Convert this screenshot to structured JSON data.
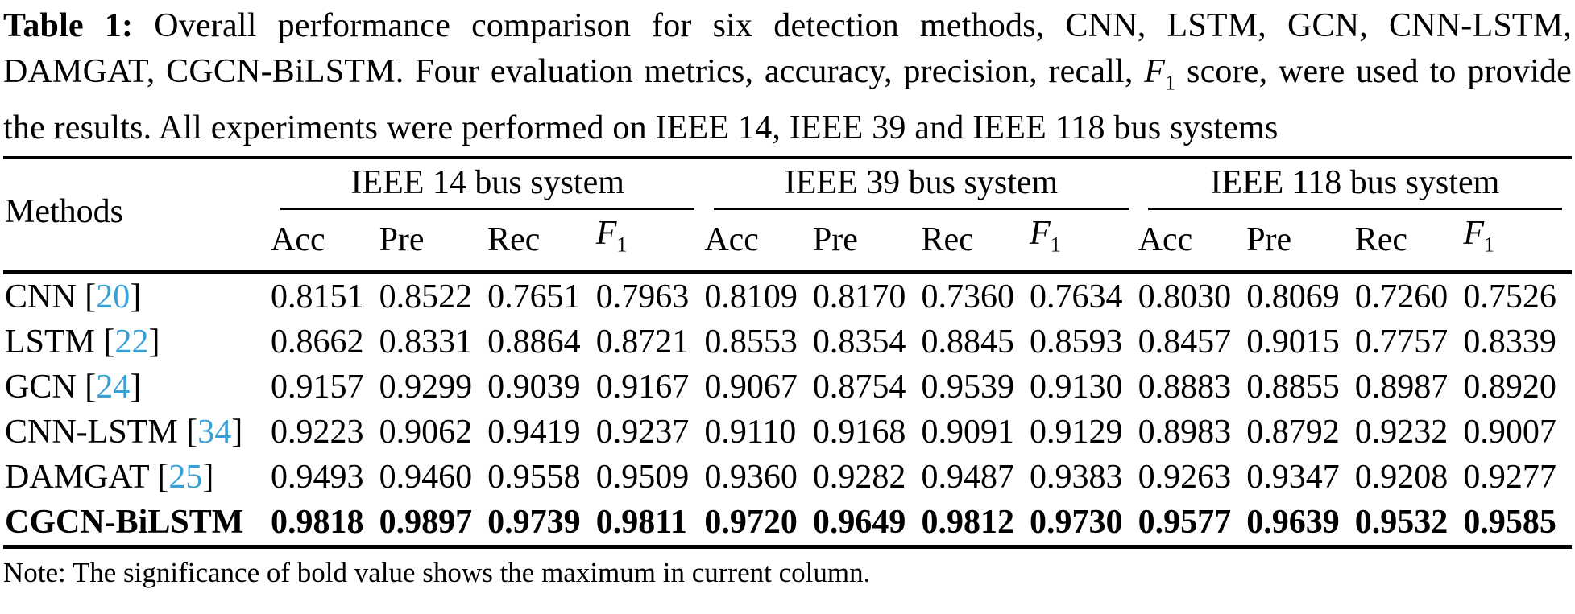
{
  "caption": {
    "label": "Table 1:",
    "segments": [
      {
        "text": "Overall performance comparison for six detection methods, CNN, LSTM, GCN, CNN-LSTM, DAMGAT, CGCN-BiLSTM. Four evaluation metrics, accuracy, precision, recall, "
      },
      {
        "math": "F",
        "sub": "1"
      },
      {
        "text": " score, were used to provide the results. All experiments were performed on IEEE 14, IEEE 39 and IEEE 118 bus systems"
      }
    ]
  },
  "table": {
    "methods_header": "Methods",
    "groups": [
      {
        "label": "IEEE 14 bus system"
      },
      {
        "label": "IEEE 39 bus system"
      },
      {
        "label": "IEEE 118 bus system"
      }
    ],
    "metric_headers": [
      {
        "base": "Acc"
      },
      {
        "base": "Pre"
      },
      {
        "base": "Rec"
      },
      {
        "base": "F",
        "sub": "1"
      }
    ],
    "citation_brackets": [
      "[",
      "]"
    ],
    "rows": [
      {
        "method": "CNN",
        "citation": "20",
        "bold": false,
        "values": [
          "0.8151",
          "0.8522",
          "0.7651",
          "0.7963",
          "0.8109",
          "0.8170",
          "0.7360",
          "0.7634",
          "0.8030",
          "0.8069",
          "0.7260",
          "0.7526"
        ]
      },
      {
        "method": "LSTM",
        "citation": "22",
        "bold": false,
        "values": [
          "0.8662",
          "0.8331",
          "0.8864",
          "0.8721",
          "0.8553",
          "0.8354",
          "0.8845",
          "0.8593",
          "0.8457",
          "0.9015",
          "0.7757",
          "0.8339"
        ]
      },
      {
        "method": "GCN",
        "citation": "24",
        "bold": false,
        "values": [
          "0.9157",
          "0.9299",
          "0.9039",
          "0.9167",
          "0.9067",
          "0.8754",
          "0.9539",
          "0.9130",
          "0.8883",
          "0.8855",
          "0.8987",
          "0.8920"
        ]
      },
      {
        "method": "CNN-LSTM",
        "citation": "34",
        "bold": false,
        "values": [
          "0.9223",
          "0.9062",
          "0.9419",
          "0.9237",
          "0.9110",
          "0.9168",
          "0.9091",
          "0.9129",
          "0.8983",
          "0.8792",
          "0.9232",
          "0.9007"
        ]
      },
      {
        "method": "DAMGAT",
        "citation": "25",
        "bold": false,
        "values": [
          "0.9493",
          "0.9460",
          "0.9558",
          "0.9509",
          "0.9360",
          "0.9282",
          "0.9487",
          "0.9383",
          "0.9263",
          "0.9347",
          "0.9208",
          "0.9277"
        ]
      },
      {
        "method": "CGCN-BiLSTM",
        "citation": null,
        "bold": true,
        "values": [
          "0.9818",
          "0.9897",
          "0.9739",
          "0.9811",
          "0.9720",
          "0.9649",
          "0.9812",
          "0.9730",
          "0.9577",
          "0.9639",
          "0.9532",
          "0.9585"
        ]
      }
    ],
    "note": "Note: The significance of bold value shows the maximum in current column."
  },
  "colors": {
    "text": "#000000",
    "citation_blue": "#37a0d7"
  }
}
